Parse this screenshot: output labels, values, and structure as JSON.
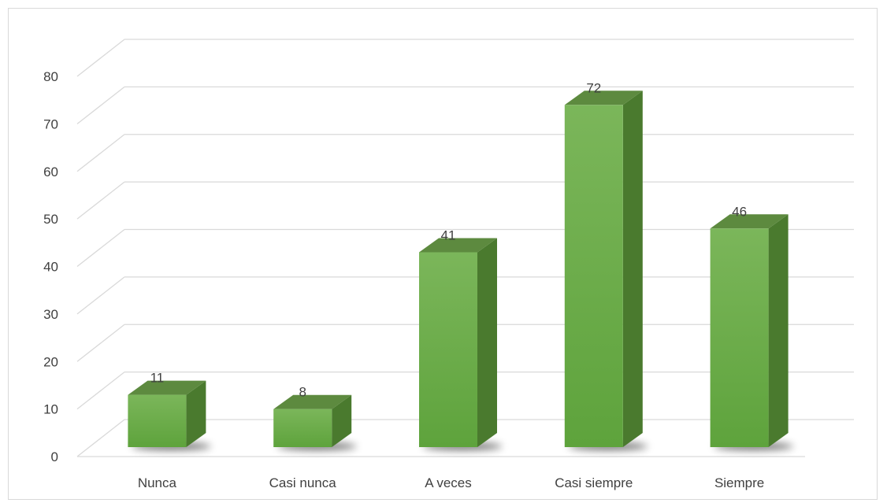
{
  "chart_data": {
    "type": "bar",
    "style": "3d-column",
    "title": "",
    "xlabel": "",
    "ylabel": "",
    "categories": [
      "Nunca",
      "Casi nunca",
      "A veces",
      "Casi siempre",
      "Siempre"
    ],
    "values": [
      11,
      8,
      41,
      72,
      46
    ],
    "data_labels": [
      "11",
      "8",
      "41",
      "72",
      "46"
    ],
    "ylim": [
      0,
      80
    ],
    "yticks": [
      0,
      10,
      20,
      30,
      40,
      50,
      60,
      70,
      80
    ],
    "ytick_labels": [
      "0",
      "10",
      "20",
      "30",
      "40",
      "50",
      "60",
      "70",
      "80"
    ],
    "grid": true,
    "legend": "none",
    "colors": {
      "bar_front_light": "#7bb65a",
      "bar_front_dark": "#5ea33c",
      "bar_side": "#4a7a2e",
      "bar_top": "#5d8a3f",
      "grid": "#d9d9d9",
      "text": "#404040"
    }
  }
}
